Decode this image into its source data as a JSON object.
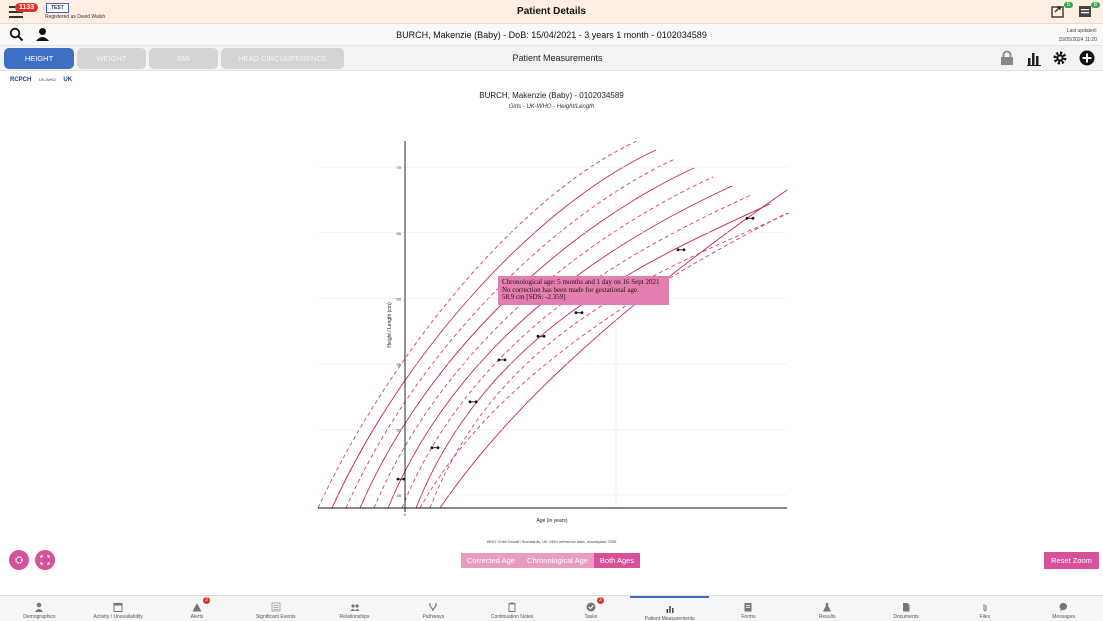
{
  "topbar": {
    "clock_badge": "1133",
    "test_label": "TEST",
    "registered": "Registered as David Walsh",
    "title": "Patient Details",
    "icon_badges": [
      "5",
      "8"
    ],
    "colors": {
      "badge_red": "#d9342b",
      "badge_green": "#3aa655"
    }
  },
  "patient": {
    "info": "BURCH, Makenzie (Baby) - DoB: 15/04/2021 - 3 years 1 month - 0102034589",
    "last_updated_label": "Last updated:",
    "last_updated_value": "15/05/2024 11:20"
  },
  "tabs": [
    {
      "label": "HEIGHT",
      "active": true
    },
    {
      "label": "WEIGHT",
      "active": false
    },
    {
      "label": "BMI",
      "active": false
    },
    {
      "label": "HEAD CIRCUMFERENCE",
      "active": false
    }
  ],
  "section_title": "Patient Measurements",
  "toolbar_icons": [
    "lock-icon",
    "bar-chart-icon",
    "gear-icon",
    "plus-icon"
  ],
  "logos": [
    "RCPCH",
    "UK-WHO",
    "UK"
  ],
  "chart_data": {
    "type": "scatter",
    "title": "BURCH, Makenzie (Baby) - 0102034589",
    "subtitle": "Girls - UK-WHO - Height/Length",
    "xlabel": "Age (in years)",
    "ylabel": "Height / Length (cm)",
    "x_ticks": [
      "0"
    ],
    "y_ticks": [
      "45",
      "50",
      "55",
      "60",
      "65",
      "70"
    ],
    "ylim": [
      44,
      72
    ],
    "colors": {
      "centile_solid": "#c7235f",
      "centile_dashed": "#d23c6f",
      "axis": "#111111"
    },
    "measurements": [
      {
        "age_label": "birth",
        "height": 46.2
      },
      {
        "age_label": "2 weeks",
        "height": 48.6
      },
      {
        "age_label": "6 weeks",
        "height": 52.1
      },
      {
        "age_label": "3 months",
        "height": 55.3
      },
      {
        "age_label": "4 months",
        "height": 57.1
      },
      {
        "age_label": "5 months",
        "height": 58.9
      },
      {
        "age_label": "7 months",
        "height": 63.7
      },
      {
        "age_label": "9 months",
        "height": 66.1
      }
    ],
    "tooltip": {
      "line1": "Chronological age: 5 months and 1 day on 16 Sept 2021",
      "line2": "No correction has been made for gestational age.",
      "line3": "58.9 cm [SDS: -2.359]"
    },
    "source_note": "WHO Child Growth Standards, UK 1990 reference data, reanalysed 2009"
  },
  "age_toggle": [
    {
      "label": "Corrected Age",
      "active": false
    },
    {
      "label": "Chronological Age",
      "active": false
    },
    {
      "label": "Both Ages",
      "active": true
    }
  ],
  "reset_zoom": "Reset Zoom",
  "bottom_nav": [
    {
      "label": "Demographics",
      "icon": "person-icon",
      "badge": ""
    },
    {
      "label": "Activity / Unavailability",
      "icon": "calendar-icon",
      "badge": ""
    },
    {
      "label": "Alerts",
      "icon": "warning-icon",
      "badge": "2"
    },
    {
      "label": "Significant Events",
      "icon": "list-icon",
      "badge": ""
    },
    {
      "label": "Relationships",
      "icon": "group-icon",
      "badge": ""
    },
    {
      "label": "Pathways",
      "icon": "pathway-icon",
      "badge": ""
    },
    {
      "label": "Continuation Notes",
      "icon": "clipboard-icon",
      "badge": ""
    },
    {
      "label": "Tasks",
      "icon": "check-icon",
      "badge": "2"
    },
    {
      "label": "Patient Measurements",
      "icon": "bar-chart-icon",
      "badge": "",
      "active": true
    },
    {
      "label": "Forms",
      "icon": "form-icon",
      "badge": ""
    },
    {
      "label": "Results",
      "icon": "flask-icon",
      "badge": ""
    },
    {
      "label": "Documents",
      "icon": "document-icon",
      "badge": ""
    },
    {
      "label": "Files",
      "icon": "paperclip-icon",
      "badge": ""
    },
    {
      "label": "Messages",
      "icon": "chat-icon",
      "badge": ""
    }
  ]
}
